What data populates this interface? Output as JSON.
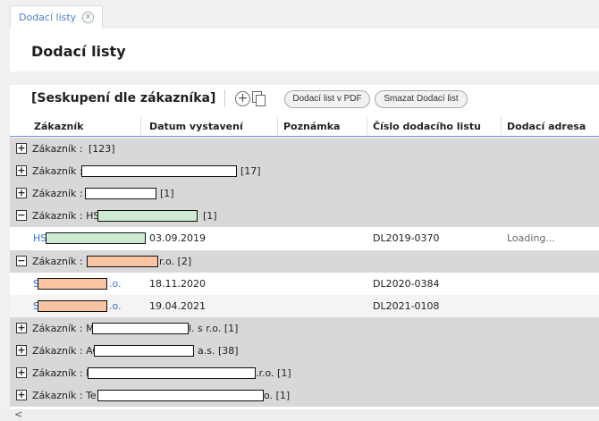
{
  "tab": {
    "label": "Dodací listy",
    "close_icon": "×"
  },
  "page": {
    "title": "Dodací listy"
  },
  "toolbar": {
    "group_title": "[Seskupení dle zákazníka]",
    "add_icon": "+",
    "pdf_button": "Dodací list v PDF",
    "delete_button": "Smazat Dodací list"
  },
  "columns": {
    "customer": "Zákazník",
    "date": "Datum vystavení",
    "note": "Poznámka",
    "number": "Číslo dodacího listu",
    "address": "Dodací adresa"
  },
  "groups": {
    "g1": {
      "label": "Zákazník :",
      "suffix": "[123]",
      "toggle": "+"
    },
    "g2": {
      "label": "Zákazník :",
      "suffix": "[17]",
      "toggle": "+"
    },
    "g3": {
      "label": "Zákazník :",
      "suffix": "[1]",
      "toggle": "+"
    },
    "g4": {
      "label": "Zákazník : HS",
      "suffix": "[1]",
      "toggle": "−"
    },
    "g5": {
      "label": "Zákazník : S",
      "suffix": "r.o. [2]",
      "toggle": "−"
    },
    "g6": {
      "label": "Zákazník : M",
      "suffix": "l. s r.o. [1]",
      "toggle": "+"
    },
    "g7": {
      "label": "Zákazník : AG",
      "suffix": "a.s. [38]",
      "toggle": "+"
    },
    "g8": {
      "label": "Zákazník : K",
      "suffix": ".r.o. [1]",
      "toggle": "+"
    },
    "g9": {
      "label": "Zákazník : Te",
      "suffix": "o. [1]",
      "toggle": "+"
    }
  },
  "rows": {
    "r1": {
      "customer_prefix": "HS",
      "customer_suffix": "",
      "date": "03.09.2019",
      "number": "DL2019-0370",
      "address": "Loading..."
    },
    "r2": {
      "customer_prefix": "S",
      "customer_suffix": ".o.",
      "date": "18.11.2020",
      "number": "DL2020-0384",
      "address": ""
    },
    "r3": {
      "customer_prefix": "S",
      "customer_suffix": ".o.",
      "date": "19.04.2021",
      "number": "DL2021-0108",
      "address": ""
    }
  },
  "scroll": {
    "left_arrow": "<"
  }
}
